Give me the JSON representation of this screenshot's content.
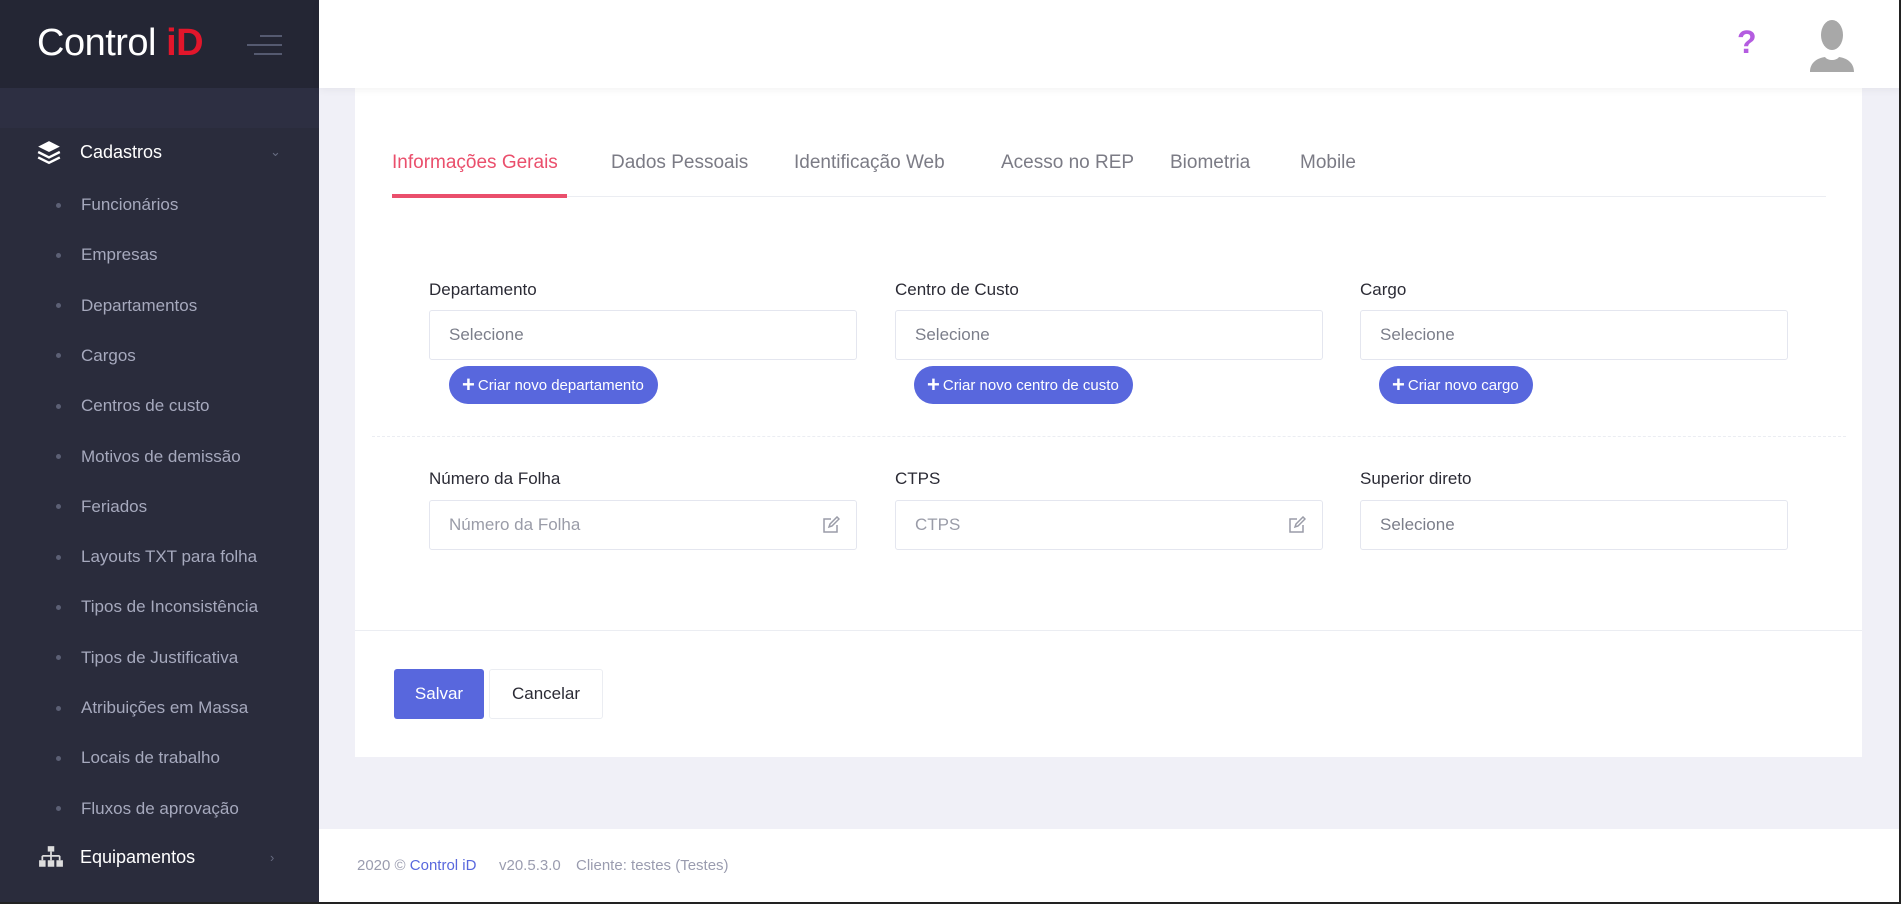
{
  "brand": {
    "logo_main": "Control",
    "logo_accent": "iD",
    "accent": "#e2162b"
  },
  "header": {
    "help_icon": "?",
    "avatar": "user-avatar"
  },
  "sidebar": {
    "sections": [
      {
        "label": "Cadastros",
        "icon": "layers-icon",
        "expanded": true,
        "items": [
          {
            "label": "Funcionários"
          },
          {
            "label": "Empresas"
          },
          {
            "label": "Departamentos"
          },
          {
            "label": "Cargos"
          },
          {
            "label": "Centros de custo"
          },
          {
            "label": "Motivos de demissão"
          },
          {
            "label": "Feriados"
          },
          {
            "label": "Layouts TXT para folha"
          },
          {
            "label": "Tipos de Inconsistência"
          },
          {
            "label": "Tipos de Justificativa"
          },
          {
            "label": "Atribuições em Massa"
          },
          {
            "label": "Locais de trabalho"
          },
          {
            "label": "Fluxos de aprovação"
          }
        ]
      },
      {
        "label": "Equipamentos",
        "icon": "sitemap-icon",
        "expanded": false
      }
    ]
  },
  "tabs": [
    {
      "label": "Informações Gerais",
      "active": true
    },
    {
      "label": "Dados Pessoais"
    },
    {
      "label": "Identificação Web"
    },
    {
      "label": "Acesso no REP"
    },
    {
      "label": "Biometria"
    },
    {
      "label": "Mobile"
    }
  ],
  "form": {
    "departamento": {
      "label": "Departamento",
      "value": "Selecione",
      "add": "Criar novo departamento"
    },
    "centro": {
      "label": "Centro de Custo",
      "value": "Selecione",
      "add": "Criar novo centro de custo"
    },
    "cargo": {
      "label": "Cargo",
      "value": "Selecione",
      "add": "Criar novo cargo"
    },
    "folha": {
      "label": "Número da Folha",
      "placeholder": "Número da Folha"
    },
    "ctps": {
      "label": "CTPS",
      "placeholder": "CTPS"
    },
    "superior": {
      "label": "Superior direto",
      "value": "Selecione"
    }
  },
  "actions": {
    "save": "Salvar",
    "cancel": "Cancelar"
  },
  "footer": {
    "year": "2020 ©",
    "company": "Control iD",
    "version": "v20.5.3.0",
    "client": "Cliente: testes (Testes)"
  },
  "colors": {
    "primary": "#5867dd",
    "active_tab": "#ea4f6c",
    "sidebar": "#2a2c3c"
  }
}
